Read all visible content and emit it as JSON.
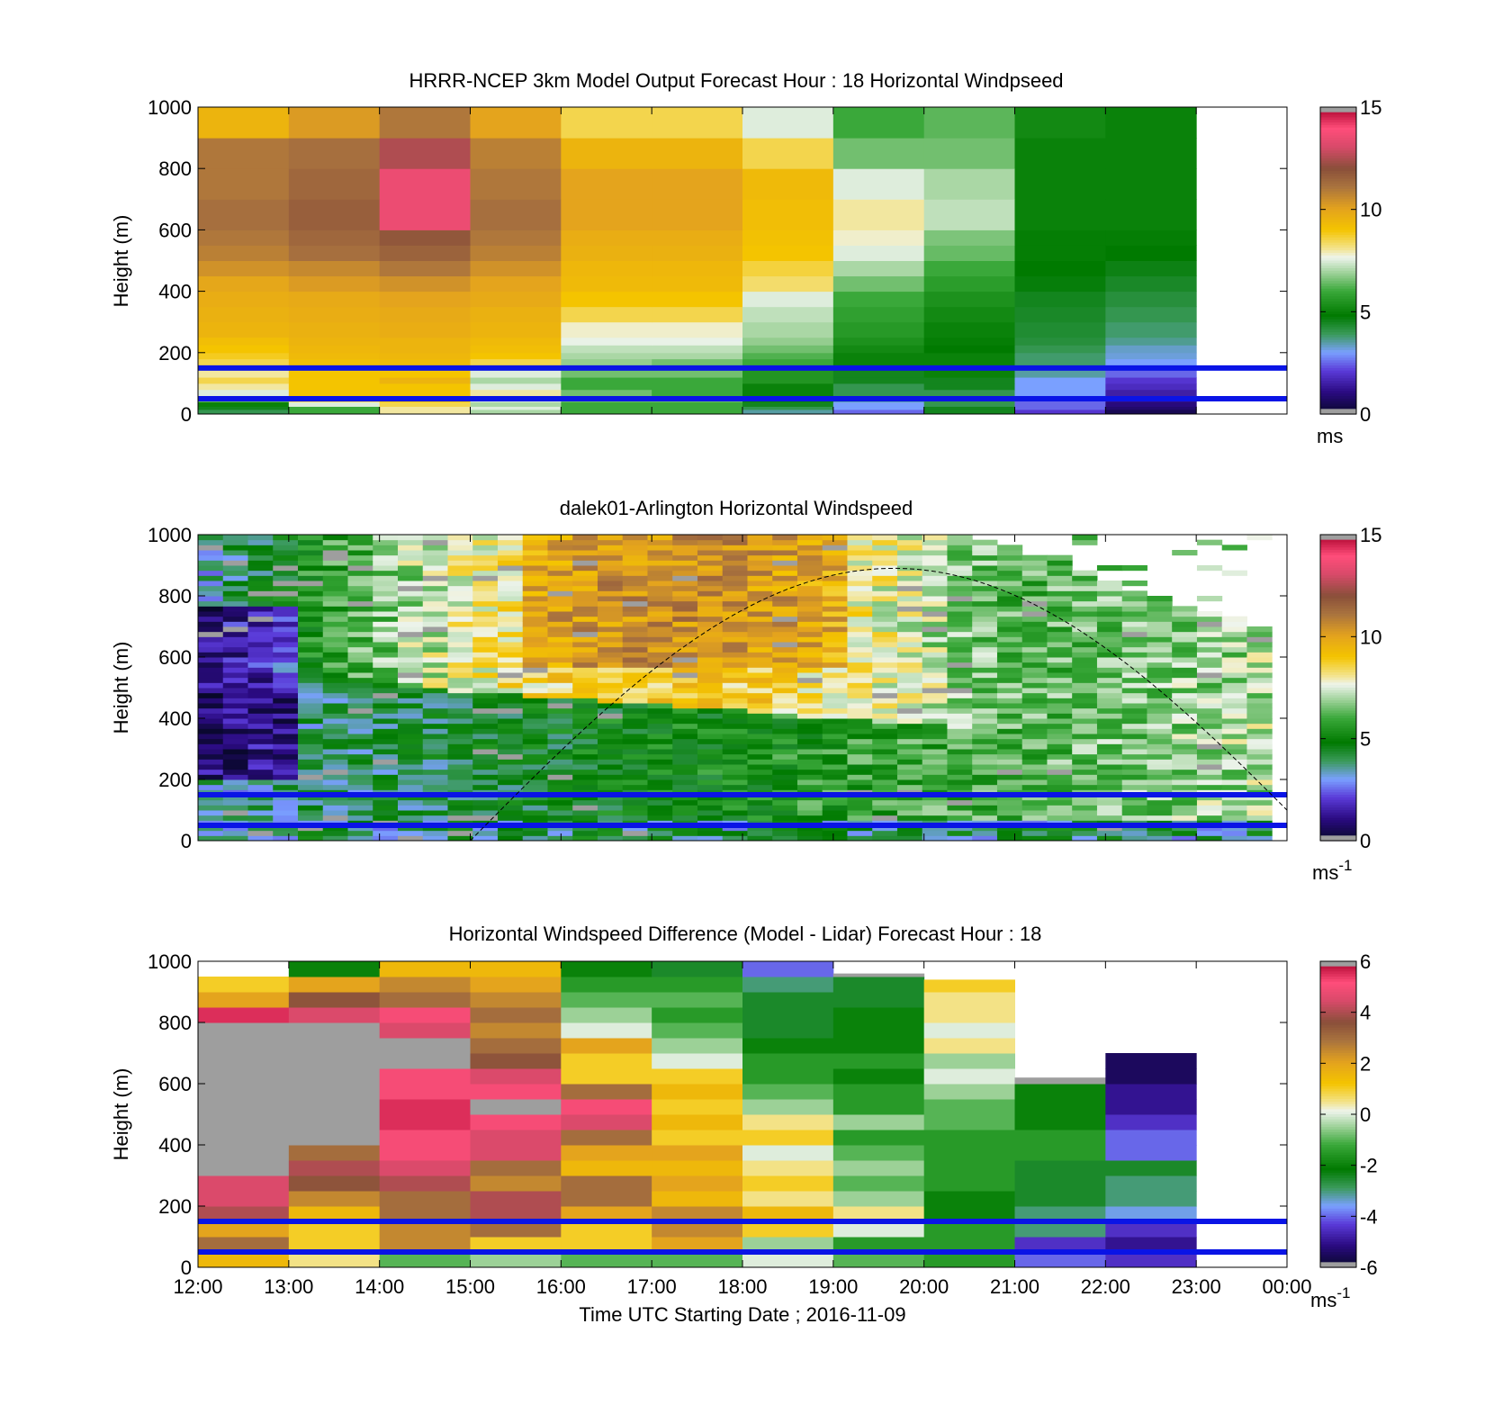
{
  "figure": {
    "xlabel": "Time UTC  Starting Date ; 2016-11-09",
    "x_ticks": [
      "12:00",
      "13:00",
      "14:00",
      "15:00",
      "16:00",
      "17:00",
      "18:00",
      "19:00",
      "20:00",
      "21:00",
      "22:00",
      "23:00",
      "00:00"
    ]
  },
  "colors": {
    "line_markers": "#0a14e6",
    "missing": "#9e9e9e"
  },
  "chart_data": [
    {
      "type": "heatmap",
      "panel": "model",
      "title": "HRRR-NCEP 3km Model Output   Forecast Hour : 18 Horizontal Windpseed",
      "ylabel": "Height (m)",
      "ylim": [
        0,
        1000
      ],
      "y_ticks": [
        "0",
        "200",
        "400",
        "600",
        "800",
        "1000"
      ],
      "x": [
        "12:00",
        "13:00",
        "14:00",
        "15:00",
        "16:00",
        "17:00",
        "18:00",
        "19:00",
        "20:00",
        "21:00",
        "22:00"
      ],
      "y_bins": [
        0,
        15,
        25,
        40,
        60,
        80,
        100,
        120,
        150,
        180,
        200,
        225,
        250,
        300,
        350,
        400,
        450,
        500,
        550,
        600,
        700,
        800,
        900,
        1000
      ],
      "values": [
        [
          4.0,
          6.0,
          8.0,
          7.0,
          6.0,
          6.0,
          3.5,
          2.5,
          4.5,
          2.0,
          0.5
        ],
        [
          4.5,
          6.0,
          8.0,
          7.5,
          6.0,
          6.0,
          4.0,
          3.0,
          4.5,
          2.5,
          0.8
        ],
        [
          5.0,
          7.5,
          8.5,
          7.0,
          6.0,
          6.0,
          4.5,
          3.0,
          4.0,
          2.5,
          1.0
        ],
        [
          6.5,
          8.5,
          9.0,
          7.5,
          6.5,
          6.5,
          5.0,
          3.5,
          4.0,
          2.5,
          1.2
        ],
        [
          7.5,
          9.0,
          9.0,
          8.0,
          6.5,
          6.0,
          5.0,
          4.0,
          4.0,
          3.0,
          1.5
        ],
        [
          8.0,
          9.0,
          9.0,
          7.5,
          6.0,
          6.0,
          5.0,
          4.0,
          4.5,
          3.0,
          1.8
        ],
        [
          8.5,
          9.0,
          9.5,
          7.0,
          6.0,
          6.0,
          5.5,
          4.5,
          4.5,
          3.0,
          2.0
        ],
        [
          8.0,
          9.0,
          9.0,
          7.5,
          6.5,
          6.5,
          5.5,
          4.5,
          5.0,
          3.5,
          2.5
        ],
        [
          8.5,
          9.2,
          9.3,
          8.5,
          6.8,
          6.5,
          6.0,
          5.0,
          5.0,
          3.8,
          3.0
        ],
        [
          8.8,
          9.3,
          9.4,
          9.0,
          7.0,
          7.0,
          6.2,
          5.0,
          5.0,
          3.8,
          3.2
        ],
        [
          9.0,
          9.4,
          9.5,
          9.2,
          7.2,
          7.2,
          6.5,
          5.2,
          4.8,
          4.0,
          3.3
        ],
        [
          9.2,
          9.5,
          9.5,
          9.3,
          7.6,
          7.6,
          6.8,
          5.4,
          4.9,
          4.2,
          3.6
        ],
        [
          9.5,
          9.6,
          9.7,
          9.5,
          7.8,
          7.8,
          7.0,
          5.6,
          5.0,
          4.3,
          3.8
        ],
        [
          9.6,
          9.7,
          9.8,
          9.6,
          8.5,
          8.5,
          7.2,
          5.8,
          5.2,
          4.4,
          4.0
        ],
        [
          9.7,
          9.8,
          10.0,
          9.8,
          9.0,
          9.0,
          7.5,
          6.0,
          5.4,
          4.5,
          4.2
        ],
        [
          9.9,
          10.2,
          10.4,
          10.0,
          9.3,
          9.3,
          8.3,
          6.5,
          5.7,
          4.7,
          4.4
        ],
        [
          10.4,
          10.6,
          11.0,
          10.4,
          9.4,
          9.4,
          8.6,
          7.0,
          6.0,
          4.8,
          4.6
        ],
        [
          10.8,
          11.2,
          11.5,
          10.8,
          9.6,
          9.6,
          9.0,
          7.5,
          6.4,
          4.9,
          4.8
        ],
        [
          11.0,
          11.4,
          11.8,
          11.0,
          9.7,
          9.7,
          9.1,
          7.8,
          6.6,
          4.9,
          4.9
        ],
        [
          11.2,
          11.6,
          13.5,
          11.2,
          10.0,
          10.0,
          9.2,
          8.0,
          7.2,
          5.0,
          5.0
        ],
        [
          11.0,
          11.4,
          13.5,
          11.0,
          10.0,
          10.0,
          9.3,
          7.5,
          7.0,
          5.0,
          5.0
        ],
        [
          11.0,
          11.2,
          12.5,
          10.8,
          9.5,
          9.5,
          8.5,
          6.5,
          6.5,
          5.0,
          5.0
        ],
        [
          9.5,
          10.2,
          11.0,
          10.0,
          8.5,
          8.5,
          7.5,
          6.0,
          6.3,
          5.2,
          5.0
        ]
      ],
      "colorbar": {
        "min": 0,
        "max": 15,
        "ticks": [
          "0",
          "5",
          "10",
          "15"
        ],
        "label": "ms"
      },
      "hlines_m": [
        50,
        150
      ]
    },
    {
      "type": "heatmap",
      "panel": "lidar",
      "title": "dalek01-Arlington  Horizontal Windspeed",
      "ylabel": "Height (m)",
      "ylim": [
        0,
        1000
      ],
      "y_ticks": [
        "0",
        "200",
        "400",
        "600",
        "800",
        "1000"
      ],
      "x_start": "12:00",
      "x_end": "23:50",
      "columns": 43,
      "colorbar": {
        "min": 0,
        "max": 15,
        "ticks": [
          "0",
          "5",
          "10",
          "15"
        ],
        "label": "ms",
        "label_sup": "-1"
      },
      "hlines_m": [
        50,
        150
      ],
      "curve": "dashed",
      "curve_peak_m": 890,
      "curve_peak_time": "19:40"
    },
    {
      "type": "heatmap",
      "panel": "difference",
      "title": "Horizontal Windspeed Difference (Model - Lidar) Forecast Hour : 18",
      "ylabel": "Height (m)",
      "ylim": [
        0,
        1000
      ],
      "y_ticks": [
        "0",
        "200",
        "400",
        "600",
        "800",
        "1000"
      ],
      "x": [
        "12:00",
        "13:00",
        "14:00",
        "15:00",
        "16:00",
        "17:00",
        "18:00",
        "19:00",
        "20:00",
        "21:00",
        "22:00"
      ],
      "column_tops_m": [
        950,
        1000,
        1000,
        1000,
        1000,
        1000,
        1000,
        960,
        940,
        620,
        700
      ],
      "y_bins": [
        0,
        50,
        100,
        150,
        200,
        250,
        300,
        350,
        400,
        450,
        500,
        550,
        600,
        650,
        700,
        750,
        800,
        850,
        900,
        950,
        1000
      ],
      "values": [
        [
          1.5,
          0.5,
          -1.0,
          -0.5,
          -1.0,
          -1.0,
          0.0,
          -1.0,
          -1.5,
          -4.0,
          -4.5
        ],
        [
          3.0,
          1.0,
          2.5,
          1.0,
          1.0,
          2.0,
          -0.5,
          -1.5,
          -1.5,
          -4.5,
          -5.0
        ],
        [
          2.0,
          1.0,
          2.5,
          3.0,
          1.0,
          2.5,
          1.0,
          0.0,
          -1.5,
          -3.0,
          -4.5
        ],
        [
          4.0,
          1.5,
          3.0,
          4.0,
          2.0,
          2.5,
          1.5,
          0.5,
          -2.0,
          -3.0,
          -3.5
        ],
        [
          4.5,
          2.5,
          3.0,
          4.0,
          3.0,
          1.5,
          0.5,
          -0.5,
          -2.0,
          -2.5,
          -3.0
        ],
        [
          4.5,
          3.5,
          4.0,
          2.5,
          3.0,
          2.0,
          1.0,
          -1.0,
          -1.5,
          -2.5,
          -3.0
        ],
        [
          null,
          4.0,
          4.5,
          3.0,
          1.5,
          1.5,
          0.5,
          -0.5,
          -1.5,
          -2.5,
          -2.5
        ],
        [
          null,
          3.0,
          5.0,
          4.5,
          2.0,
          2.0,
          0.0,
          -1.0,
          -1.5,
          -1.5,
          -4.0
        ],
        [
          null,
          null,
          5.0,
          4.5,
          3.0,
          1.0,
          1.0,
          -1.5,
          -1.5,
          -1.5,
          -4.0
        ],
        [
          null,
          null,
          5.5,
          5.0,
          4.5,
          1.5,
          0.5,
          -0.5,
          -1.0,
          -2.0,
          -4.5
        ],
        [
          null,
          null,
          5.5,
          null,
          5.0,
          1.0,
          -0.5,
          -1.5,
          -1.0,
          -2.0,
          -5.0
        ],
        [
          null,
          null,
          5.0,
          5.0,
          3.0,
          1.5,
          -1.0,
          -1.5,
          -0.5,
          -2.0,
          -5.0
        ],
        [
          null,
          null,
          5.0,
          4.5,
          1.0,
          1.0,
          -1.5,
          -2.0,
          0.0,
          null,
          -5.5
        ],
        [
          null,
          null,
          null,
          3.5,
          1.0,
          0.0,
          -1.5,
          -1.5,
          -0.5,
          null,
          -5.5
        ],
        [
          null,
          null,
          null,
          3.0,
          2.0,
          -0.5,
          -2.0,
          -2.0,
          0.5,
          null,
          null
        ],
        [
          null,
          null,
          4.5,
          2.5,
          0.0,
          -1.0,
          -2.5,
          -2.0,
          0.0,
          null,
          null
        ],
        [
          5.5,
          4.5,
          5.0,
          3.0,
          -0.5,
          -1.5,
          -2.5,
          -2.0,
          0.5,
          null,
          null
        ],
        [
          2.0,
          3.5,
          3.0,
          2.5,
          -1.0,
          -1.0,
          -2.5,
          -2.5,
          0.5,
          null,
          null
        ],
        [
          1.0,
          2.0,
          2.5,
          2.0,
          -1.5,
          -1.5,
          -3.0,
          -2.5,
          1.0,
          null,
          null
        ],
        [
          null,
          -2.0,
          1.5,
          1.5,
          -2.0,
          -2.5,
          -4.0,
          null,
          null,
          null,
          null
        ]
      ],
      "colorbar": {
        "min": -6,
        "max": 6,
        "ticks": [
          "-6",
          "-4",
          "-2",
          "0",
          "2",
          "4",
          "6"
        ],
        "label": "ms",
        "label_sup": "-1"
      },
      "hlines_m": [
        50,
        150
      ]
    }
  ]
}
